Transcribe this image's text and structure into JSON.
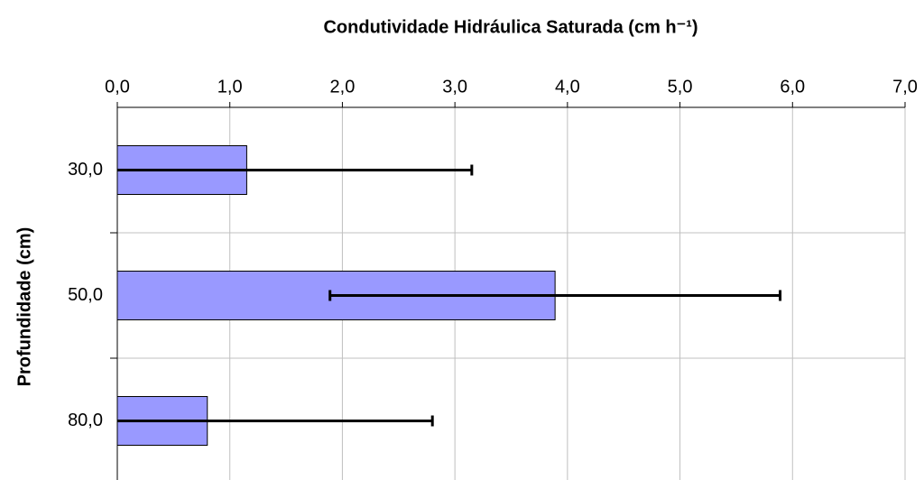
{
  "chart_data": {
    "type": "bar",
    "orientation": "horizontal",
    "title": "Condutividade Hidráulica Saturada (cm h⁻¹)",
    "y_label": "Profundidade (cm)",
    "categories": [
      "30,0",
      "50,0",
      "80,0"
    ],
    "values": [
      1.15,
      3.89,
      0.8
    ],
    "errors": [
      2.0,
      2.0,
      2.0
    ],
    "color": "#9999ff",
    "xlim": [
      0,
      7
    ],
    "xticks": [
      {
        "value": 0,
        "label": "0,0"
      },
      {
        "value": 1,
        "label": "1,0"
      },
      {
        "value": 2,
        "label": "2,0"
      },
      {
        "value": 3,
        "label": "3,0"
      },
      {
        "value": 4,
        "label": "4,0"
      },
      {
        "value": 5,
        "label": "5,0"
      },
      {
        "value": 6,
        "label": "6,0"
      },
      {
        "value": 7,
        "label": "7,0"
      }
    ],
    "grid": true
  }
}
